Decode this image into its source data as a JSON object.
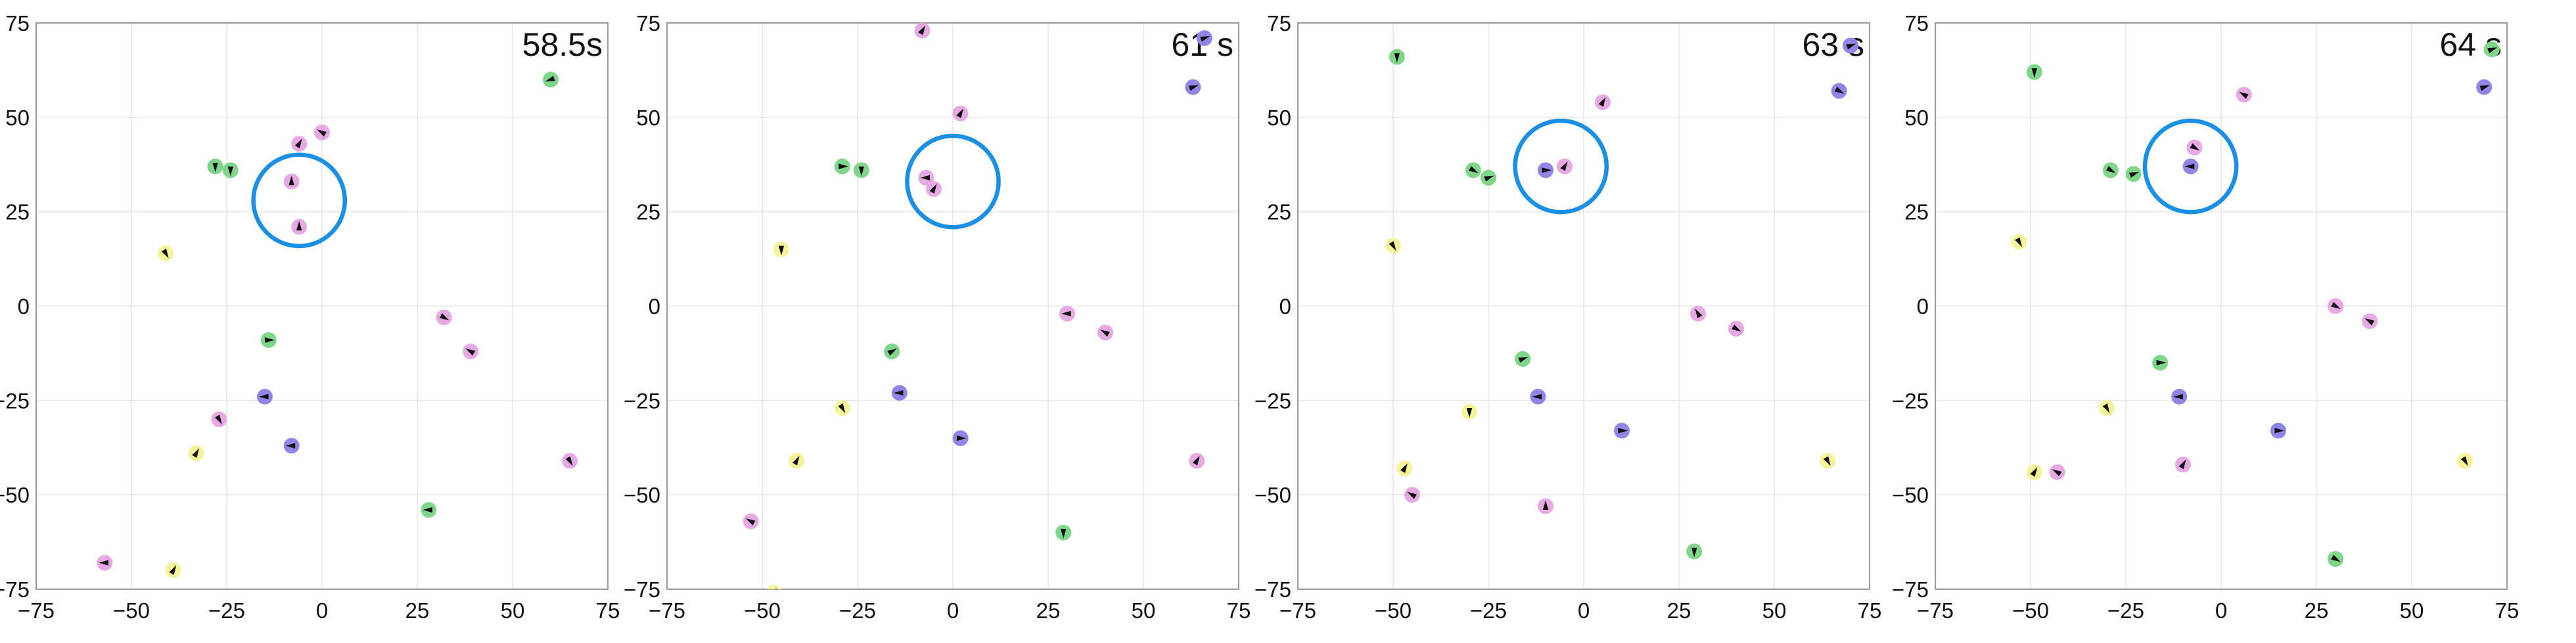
{
  "chart_data": [
    {
      "type": "scatter",
      "title": "58.5s",
      "xlim": [
        -75,
        75
      ],
      "ylim": [
        -75,
        75
      ],
      "xticks": [
        -75,
        -50,
        -25,
        0,
        25,
        50,
        75
      ],
      "yticks": [
        -75,
        -50,
        -25,
        0,
        25,
        50,
        75
      ],
      "grid": true,
      "circle": {
        "x": -6,
        "y": 28,
        "r": 12
      },
      "points": [
        {
          "x": 60,
          "y": 60,
          "color": "#7fd58a",
          "heading": 200
        },
        {
          "x": -28,
          "y": 37,
          "color": "#7fd58a",
          "heading": 270
        },
        {
          "x": -24,
          "y": 36,
          "color": "#7fd58a",
          "heading": 270
        },
        {
          "x": -6,
          "y": 43,
          "color": "#e6a9e3",
          "heading": 60
        },
        {
          "x": 0,
          "y": 46,
          "color": "#e6a9e3",
          "heading": 150
        },
        {
          "x": -8,
          "y": 33,
          "color": "#e6a9e3",
          "heading": 90
        },
        {
          "x": -6,
          "y": 21,
          "color": "#e6a9e3",
          "heading": 90
        },
        {
          "x": -41,
          "y": 14,
          "color": "#f6f49a",
          "heading": 300
        },
        {
          "x": 32,
          "y": -3,
          "color": "#e6a9e3",
          "heading": 330
        },
        {
          "x": 39,
          "y": -12,
          "color": "#e6a9e3",
          "heading": 150
        },
        {
          "x": -14,
          "y": -9,
          "color": "#7fd58a",
          "heading": 0
        },
        {
          "x": -15,
          "y": -24,
          "color": "#8f86e8",
          "heading": 180
        },
        {
          "x": -27,
          "y": -30,
          "color": "#e6a9e3",
          "heading": 300
        },
        {
          "x": -8,
          "y": -37,
          "color": "#8f86e8",
          "heading": 180
        },
        {
          "x": -33,
          "y": -39,
          "color": "#f6f49a",
          "heading": 60
        },
        {
          "x": 65,
          "y": -41,
          "color": "#e6a9e3",
          "heading": 300
        },
        {
          "x": 28,
          "y": -54,
          "color": "#7fd58a",
          "heading": 180
        },
        {
          "x": -57,
          "y": -68,
          "color": "#e6a9e3",
          "heading": 180
        },
        {
          "x": -39,
          "y": -70,
          "color": "#f6f49a",
          "heading": 60
        }
      ]
    },
    {
      "type": "scatter",
      "title": "61 s",
      "xlim": [
        -75,
        75
      ],
      "ylim": [
        -75,
        75
      ],
      "xticks": [
        -75,
        -50,
        -25,
        0,
        25,
        50,
        75
      ],
      "yticks": [
        -75,
        -50,
        -25,
        0,
        25,
        50,
        75
      ],
      "grid": true,
      "circle": {
        "x": 0,
        "y": 33,
        "r": 12
      },
      "points": [
        {
          "x": -8,
          "y": 73,
          "color": "#e6a9e3",
          "heading": 60
        },
        {
          "x": 66,
          "y": 71,
          "color": "#8f86e8",
          "heading": 20
        },
        {
          "x": 63,
          "y": 58,
          "color": "#8f86e8",
          "heading": 20
        },
        {
          "x": 2,
          "y": 51,
          "color": "#e6a9e3",
          "heading": 60
        },
        {
          "x": -29,
          "y": 37,
          "color": "#7fd58a",
          "heading": 0
        },
        {
          "x": -24,
          "y": 36,
          "color": "#7fd58a",
          "heading": 270
        },
        {
          "x": -7,
          "y": 34,
          "color": "#e6a9e3",
          "heading": 180
        },
        {
          "x": -5,
          "y": 31,
          "color": "#e6a9e3",
          "heading": 60
        },
        {
          "x": -45,
          "y": 15,
          "color": "#f6f49a",
          "heading": 270
        },
        {
          "x": 30,
          "y": -2,
          "color": "#e6a9e3",
          "heading": 180
        },
        {
          "x": 40,
          "y": -7,
          "color": "#e6a9e3",
          "heading": 150
        },
        {
          "x": -16,
          "y": -12,
          "color": "#7fd58a",
          "heading": 30
        },
        {
          "x": -14,
          "y": -23,
          "color": "#8f86e8",
          "heading": 180
        },
        {
          "x": -29,
          "y": -27,
          "color": "#f6f49a",
          "heading": 300
        },
        {
          "x": 2,
          "y": -35,
          "color": "#8f86e8",
          "heading": 0
        },
        {
          "x": -41,
          "y": -41,
          "color": "#f6f49a",
          "heading": 60
        },
        {
          "x": 64,
          "y": -41,
          "color": "#e6a9e3",
          "heading": 60
        },
        {
          "x": -53,
          "y": -57,
          "color": "#e6a9e3",
          "heading": 150
        },
        {
          "x": 29,
          "y": -60,
          "color": "#7fd58a",
          "heading": 270
        },
        {
          "x": -47,
          "y": -76,
          "color": "#f6f49a",
          "heading": 60
        }
      ]
    },
    {
      "type": "scatter",
      "title": "63 s",
      "xlim": [
        -75,
        75
      ],
      "ylim": [
        -75,
        75
      ],
      "xticks": [
        -75,
        -50,
        -25,
        0,
        25,
        50,
        75
      ],
      "yticks": [
        -75,
        -50,
        -25,
        0,
        25,
        50,
        75
      ],
      "grid": true,
      "circle": {
        "x": -6,
        "y": 37,
        "r": 12
      },
      "points": [
        {
          "x": -49,
          "y": 66,
          "color": "#7fd58a",
          "heading": 270
        },
        {
          "x": 70,
          "y": 69,
          "color": "#8f86e8",
          "heading": 20
        },
        {
          "x": 67,
          "y": 57,
          "color": "#8f86e8",
          "heading": 330
        },
        {
          "x": 5,
          "y": 54,
          "color": "#e6a9e3",
          "heading": 60
        },
        {
          "x": -29,
          "y": 36,
          "color": "#7fd58a",
          "heading": 330
        },
        {
          "x": -25,
          "y": 34,
          "color": "#7fd58a",
          "heading": 20
        },
        {
          "x": -10,
          "y": 36,
          "color": "#8f86e8",
          "heading": 0
        },
        {
          "x": -5,
          "y": 37,
          "color": "#e6a9e3",
          "heading": 60
        },
        {
          "x": -50,
          "y": 16,
          "color": "#f6f49a",
          "heading": 300
        },
        {
          "x": 30,
          "y": -2,
          "color": "#e6a9e3",
          "heading": 120
        },
        {
          "x": 40,
          "y": -6,
          "color": "#e6a9e3",
          "heading": 330
        },
        {
          "x": -16,
          "y": -14,
          "color": "#7fd58a",
          "heading": 20
        },
        {
          "x": -12,
          "y": -24,
          "color": "#8f86e8",
          "heading": 180
        },
        {
          "x": -30,
          "y": -28,
          "color": "#f6f49a",
          "heading": 270
        },
        {
          "x": 10,
          "y": -33,
          "color": "#8f86e8",
          "heading": 0
        },
        {
          "x": 64,
          "y": -41,
          "color": "#f6f49a",
          "heading": 300
        },
        {
          "x": -47,
          "y": -43,
          "color": "#f6f49a",
          "heading": 60
        },
        {
          "x": -45,
          "y": -50,
          "color": "#e6a9e3",
          "heading": 150
        },
        {
          "x": -10,
          "y": -53,
          "color": "#e6a9e3",
          "heading": 90
        },
        {
          "x": 29,
          "y": -65,
          "color": "#7fd58a",
          "heading": 270
        }
      ]
    },
    {
      "type": "scatter",
      "title": "64 s",
      "xlim": [
        -75,
        75
      ],
      "ylim": [
        -75,
        75
      ],
      "xticks": [
        -75,
        -50,
        -25,
        0,
        25,
        50,
        75
      ],
      "yticks": [
        -75,
        -50,
        -25,
        0,
        25,
        50,
        75
      ],
      "grid": true,
      "circle": {
        "x": -8,
        "y": 37,
        "r": 12
      },
      "points": [
        {
          "x": 71,
          "y": 68,
          "color": "#7fd58a",
          "heading": 20
        },
        {
          "x": -49,
          "y": 62,
          "color": "#7fd58a",
          "heading": 270
        },
        {
          "x": 69,
          "y": 58,
          "color": "#8f86e8",
          "heading": 20
        },
        {
          "x": 6,
          "y": 56,
          "color": "#e6a9e3",
          "heading": 150
        },
        {
          "x": -29,
          "y": 36,
          "color": "#7fd58a",
          "heading": 330
        },
        {
          "x": -23,
          "y": 35,
          "color": "#7fd58a",
          "heading": 20
        },
        {
          "x": -7,
          "y": 42,
          "color": "#e6a9e3",
          "heading": 330
        },
        {
          "x": -8,
          "y": 37,
          "color": "#8f86e8",
          "heading": 180
        },
        {
          "x": -53,
          "y": 17,
          "color": "#f6f49a",
          "heading": 300
        },
        {
          "x": 30,
          "y": 0,
          "color": "#e6a9e3",
          "heading": 330
        },
        {
          "x": 39,
          "y": -4,
          "color": "#e6a9e3",
          "heading": 150
        },
        {
          "x": -16,
          "y": -15,
          "color": "#7fd58a",
          "heading": 0
        },
        {
          "x": -11,
          "y": -24,
          "color": "#8f86e8",
          "heading": 180
        },
        {
          "x": -30,
          "y": -27,
          "color": "#f6f49a",
          "heading": 300
        },
        {
          "x": 15,
          "y": -33,
          "color": "#8f86e8",
          "heading": 0
        },
        {
          "x": 64,
          "y": -41,
          "color": "#f6f49a",
          "heading": 300
        },
        {
          "x": -49,
          "y": -44,
          "color": "#f6f49a",
          "heading": 60
        },
        {
          "x": -43,
          "y": -44,
          "color": "#e6a9e3",
          "heading": 150
        },
        {
          "x": -10,
          "y": -42,
          "color": "#e6a9e3",
          "heading": 60
        },
        {
          "x": 30,
          "y": -67,
          "color": "#7fd58a",
          "heading": 330
        }
      ]
    }
  ]
}
